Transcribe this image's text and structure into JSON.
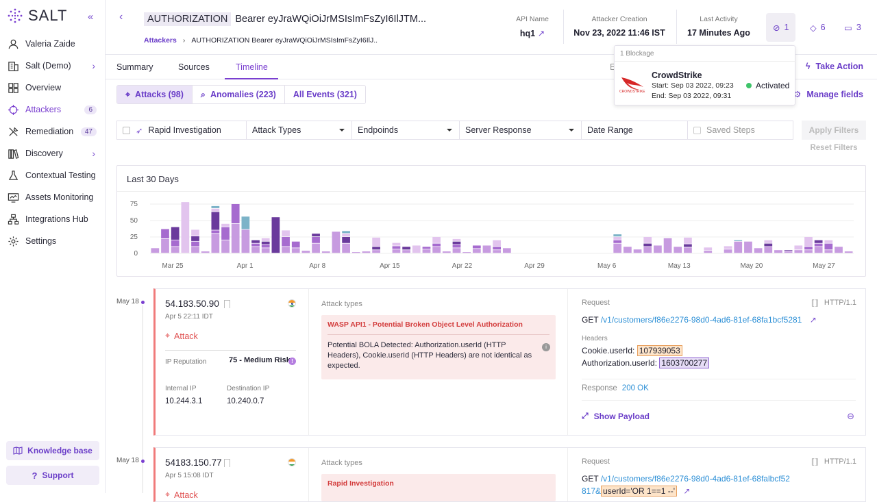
{
  "app": {
    "logo_text": "SALT",
    "accent": "#7a3fd0"
  },
  "sidebar": {
    "items": [
      {
        "label": "Valeria Zaide",
        "icon": "user-icon"
      },
      {
        "label": "Salt (Demo)",
        "icon": "building-icon"
      },
      {
        "label": "Overview",
        "icon": "grid-icon"
      },
      {
        "label": "Attackers",
        "icon": "crosshair-icon",
        "badge": "6"
      },
      {
        "label": "Remediation",
        "icon": "tools-icon",
        "badge": "47"
      },
      {
        "label": "Discovery",
        "icon": "books-icon"
      },
      {
        "label": "Contextual Testing",
        "icon": "flask-icon"
      },
      {
        "label": "Assets Monitoring",
        "icon": "monitor-icon"
      },
      {
        "label": "Integrations Hub",
        "icon": "hub-icon"
      },
      {
        "label": "Settings",
        "icon": "gear-icon"
      }
    ],
    "knowledge_base": "Knowledge base",
    "support": "Support"
  },
  "header": {
    "tag": "AUTHORIZATION",
    "title": "Bearer eyJraWQiOiJrMSIsImFsZyI6IlJTM...",
    "breadcrumb_link": "Attackers",
    "breadcrumb_current": "AUTHORIZATION Bearer eyJraWQiOiJrMSIsImFsZyI6IlJ..",
    "api_name_label": "API Name",
    "api_name": "hq1",
    "creation_label": "Attacker Creation",
    "creation": "Nov 23, 2022 11:46 IST",
    "activity_label": "Last Activity",
    "activity": "17 Minutes Ago",
    "blockages_count": "1",
    "tags_count": "6",
    "comments_count": "3"
  },
  "popup": {
    "header": "1 Blockage",
    "name": "CrowdStrike",
    "start": "Start: Sep 03 2022, 09:23",
    "end": "End: Sep 03 2022, 09:31",
    "status": "Activated",
    "logo_text": "CROWDSTRIKE"
  },
  "tabs": [
    "Summary",
    "Sources",
    "Timeline"
  ],
  "tab_hidden_char": "E",
  "take_action": "Take Action",
  "segments": [
    "Attacks (98)",
    "Anomalies (223)",
    "All Events (321)"
  ],
  "manage_fields": "Manage fields",
  "filters": {
    "rapid": "Rapid Investigation",
    "attack_types": "Attack Types",
    "endpoints": "Endpoinds",
    "server_response": "Server Response",
    "date_range": "Date Range",
    "saved_steps": "Saved Steps",
    "apply": "Apply Filters",
    "reset": "Reset Filters"
  },
  "chart_data": {
    "type": "bar",
    "title": "Last 30 Days",
    "ylim": [
      0,
      75
    ],
    "yticks": [
      "75",
      "50",
      "25",
      "0"
    ],
    "xticks": [
      "Mar 25",
      "Apr 1",
      "Apr 8",
      "Apr 15",
      "Apr 22",
      "Apr 29",
      "May 6",
      "May 13",
      "May 20",
      "May 27"
    ],
    "stacked": true,
    "series_colors": [
      "#c79be0",
      "#a66bcf",
      "#6a3a9c",
      "#e2c4ee",
      "#7cb3c8"
    ],
    "values": [
      [
        8,
        0,
        0,
        0,
        0
      ],
      [
        22,
        15,
        0,
        0,
        0
      ],
      [
        10,
        10,
        20,
        0,
        0
      ],
      [
        0,
        0,
        0,
        78,
        0
      ],
      [
        10,
        8,
        8,
        10,
        0
      ],
      [
        3,
        0,
        0,
        0,
        0
      ],
      [
        30,
        5,
        28,
        5,
        4
      ],
      [
        20,
        20,
        0,
        5,
        0
      ],
      [
        45,
        30,
        0,
        0,
        0
      ],
      [
        36,
        0,
        0,
        0,
        20
      ],
      [
        10,
        5,
        5,
        0,
        0
      ],
      [
        8,
        5,
        5,
        5,
        0
      ],
      [
        0,
        0,
        55,
        0,
        0
      ],
      [
        10,
        15,
        0,
        10,
        0
      ],
      [
        8,
        10,
        0,
        0,
        0
      ],
      [
        4,
        0,
        0,
        0,
        0
      ],
      [
        15,
        10,
        5,
        0,
        0
      ],
      [
        3,
        0,
        0,
        0,
        0
      ],
      [
        33,
        0,
        0,
        0,
        0
      ],
      [
        15,
        0,
        10,
        5,
        4
      ],
      [
        2,
        0,
        0,
        0,
        0
      ],
      [
        3,
        0,
        0,
        0,
        0
      ],
      [
        5,
        0,
        5,
        14,
        0
      ],
      [
        0,
        0,
        0,
        0,
        0
      ],
      [
        6,
        5,
        0,
        5,
        0
      ],
      [
        5,
        0,
        5,
        0,
        0
      ],
      [
        0,
        0,
        0,
        12,
        0
      ],
      [
        6,
        4,
        0,
        0,
        0
      ],
      [
        10,
        5,
        0,
        10,
        0
      ],
      [
        3,
        0,
        0,
        0,
        0
      ],
      [
        8,
        5,
        5,
        4,
        0
      ],
      [
        2,
        0,
        0,
        0,
        0
      ],
      [
        7,
        5,
        0,
        0,
        0
      ],
      [
        12,
        0,
        0,
        0,
        0
      ],
      [
        5,
        5,
        0,
        10,
        0
      ],
      [
        8,
        0,
        0,
        0,
        0
      ],
      [
        0,
        0,
        0,
        0,
        0
      ],
      [
        0,
        0,
        0,
        0,
        0
      ],
      [
        0,
        0,
        0,
        0,
        0
      ],
      [
        0,
        0,
        0,
        0,
        0
      ],
      [
        0,
        0,
        0,
        0,
        0
      ],
      [
        0,
        0,
        0,
        0,
        0
      ],
      [
        0,
        0,
        0,
        0,
        0
      ],
      [
        0,
        0,
        0,
        0,
        0
      ],
      [
        0,
        0,
        0,
        0,
        0
      ],
      [
        0,
        0,
        0,
        0,
        0
      ],
      [
        15,
        5,
        0,
        5,
        4
      ],
      [
        10,
        0,
        0,
        0,
        0
      ],
      [
        6,
        0,
        0,
        0,
        0
      ],
      [
        10,
        0,
        5,
        10,
        0
      ],
      [
        12,
        0,
        0,
        0,
        0
      ],
      [
        23,
        0,
        0,
        0,
        0
      ],
      [
        10,
        0,
        0,
        0,
        0
      ],
      [
        9,
        0,
        5,
        10,
        0
      ],
      [
        0,
        0,
        0,
        0,
        0
      ],
      [
        4,
        0,
        0,
        5,
        0
      ],
      [
        0,
        0,
        0,
        0,
        0
      ],
      [
        6,
        0,
        0,
        5,
        0
      ],
      [
        18,
        0,
        0,
        0,
        2
      ],
      [
        18,
        0,
        0,
        0,
        0
      ],
      [
        8,
        0,
        0,
        0,
        0
      ],
      [
        10,
        0,
        5,
        5,
        0
      ],
      [
        5,
        0,
        0,
        0,
        0
      ],
      [
        3,
        0,
        2,
        0,
        0
      ],
      [
        5,
        0,
        0,
        7,
        0
      ],
      [
        5,
        5,
        0,
        15,
        0
      ],
      [
        10,
        5,
        5,
        0,
        0
      ],
      [
        5,
        10,
        0,
        5,
        0
      ],
      [
        10,
        0,
        0,
        0,
        0
      ],
      [
        3,
        0,
        0,
        0,
        0
      ]
    ]
  },
  "events": [
    {
      "date": "May 18",
      "ip": "54.183.50.90",
      "time": "Apr 5 22:11 IDT",
      "kind": "Attack",
      "rep_label": "IP Reputation",
      "rep_value": "75 - Medium Risk",
      "internal_label": "Internal IP",
      "internal": "10.244.3.1",
      "dest_label": "Destination IP",
      "dest": "10.240.0.7",
      "attack_types_label": "Attack types",
      "attack_title": "WASP API1 - Potential Broken Object Level Authorization",
      "attack_body": "Potential BOLA Detected: Authorization.userId (HTTP Headers), Cookie.userId (HTTP Headers) are not identical as expected.",
      "request_label": "Request",
      "http": "HTTP/1.1",
      "method": "GET",
      "url": "/v1/customers/f86e2276-98d0-4ad6-81ef-68fa1bcf5281",
      "headers_label": "Headers",
      "cookie_key": "Cookie.userId:",
      "cookie_val": "107939053",
      "auth_key": "Authorization.userId:",
      "auth_val": "1603700277",
      "response_label": "Response",
      "response": "200 OK",
      "show_payload": "Show Payload"
    },
    {
      "date": "May 18",
      "ip": "54183.150.77",
      "time": "Apr 5 15:08 IDT",
      "kind": "Attack",
      "attack_types_label": "Attack types",
      "attack_title": "Rapid Investigation",
      "request_label": "Request",
      "http": "HTTP/1.1",
      "method": "GET",
      "url": "/v1/customers/f86e2276-98d0-4ad6-81ef-68falbcf52",
      "url2": "817&",
      "url_param": "userId='OR 1==1 --'"
    }
  ]
}
